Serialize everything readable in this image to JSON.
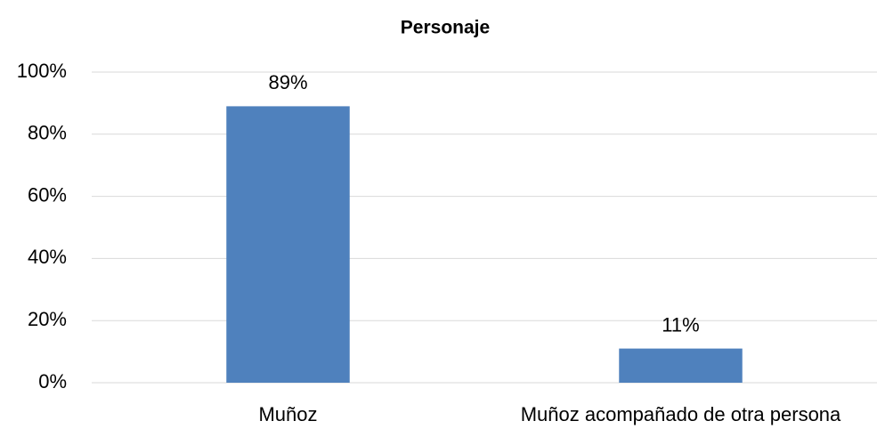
{
  "chart_data": {
    "type": "bar",
    "title": "Personaje",
    "categories": [
      "Muñoz",
      "Muñoz acompañado de otra persona"
    ],
    "values": [
      89,
      11
    ],
    "value_labels": [
      "89%",
      "11%"
    ],
    "color": "#4f81bd",
    "ylim": [
      0,
      100
    ],
    "yticks": [
      {
        "value": 0,
        "label": "0%"
      },
      {
        "value": 20,
        "label": "20%"
      },
      {
        "value": 40,
        "label": "40%"
      },
      {
        "value": 60,
        "label": "60%"
      },
      {
        "value": 80,
        "label": "80%"
      },
      {
        "value": 100,
        "label": "100%"
      }
    ],
    "grid": true
  }
}
